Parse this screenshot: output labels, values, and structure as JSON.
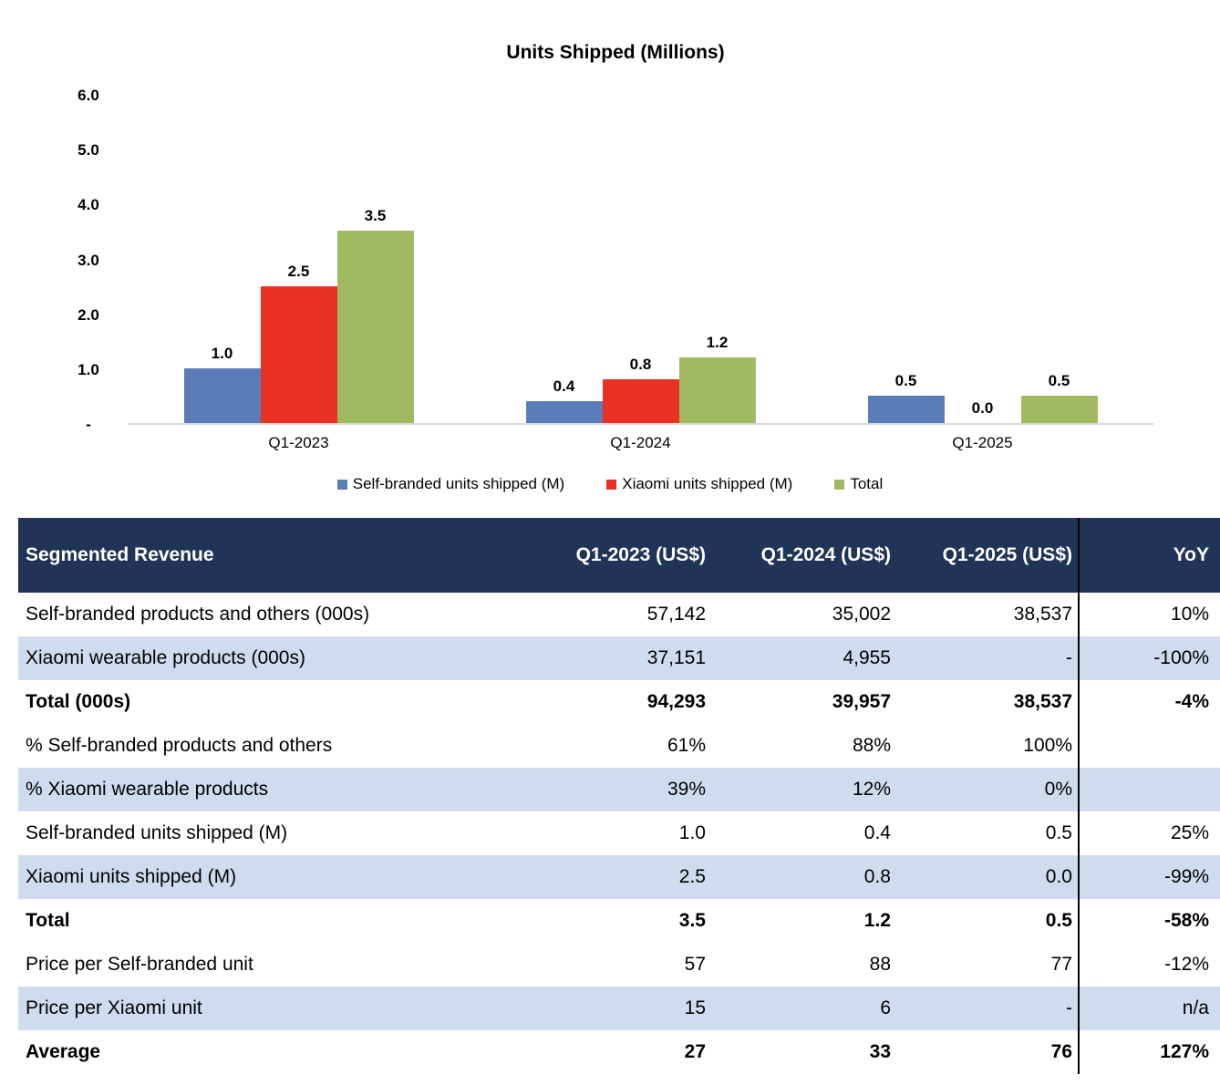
{
  "chart_data": {
    "type": "bar",
    "title": "Units Shipped (Millions)",
    "categories": [
      "Q1-2023",
      "Q1-2024",
      "Q1-2025"
    ],
    "series": [
      {
        "name": "Self-branded units shipped (M)",
        "color": "#5A7DB9",
        "values": [
          1.0,
          0.4,
          0.5
        ]
      },
      {
        "name": "Xiaomi units shipped (M)",
        "color": "#E93223",
        "values": [
          2.5,
          0.8,
          0.0
        ]
      },
      {
        "name": "Total",
        "color": "#A1BA61",
        "values": [
          3.5,
          1.2,
          0.5
        ]
      }
    ],
    "ylim": [
      0,
      6
    ],
    "y_tick_labels": [
      "6.0",
      "5.0",
      "4.0",
      "3.0",
      "2.0",
      "1.0",
      "-"
    ],
    "grid": false,
    "legend_position": "bottom",
    "data_labels": true,
    "axis_line_color": "#D9D9D9"
  },
  "table": {
    "columns": [
      "Segmented Revenue",
      "Q1-2023 (US$)",
      "Q1-2024 (US$)",
      "Q1-2025 (US$)",
      "YoY"
    ],
    "rows": [
      {
        "label": "Self-branded products and others (000s)",
        "values": [
          "57,142",
          "35,002",
          "38,537",
          "10%"
        ],
        "bold": false,
        "shaded": false
      },
      {
        "label": "Xiaomi wearable products (000s)",
        "values": [
          "37,151",
          "4,955",
          "-",
          "-100%"
        ],
        "bold": false,
        "shaded": true
      },
      {
        "label": "Total (000s)",
        "values": [
          "94,293",
          "39,957",
          "38,537",
          "-4%"
        ],
        "bold": true,
        "shaded": false
      },
      {
        "label": "% Self-branded products and others",
        "values": [
          "61%",
          "88%",
          "100%",
          ""
        ],
        "bold": false,
        "shaded": false
      },
      {
        "label": "% Xiaomi wearable products",
        "values": [
          "39%",
          "12%",
          "0%",
          ""
        ],
        "bold": false,
        "shaded": true
      },
      {
        "label": "Self-branded units shipped (M)",
        "values": [
          "1.0",
          "0.4",
          "0.5",
          "25%"
        ],
        "bold": false,
        "shaded": false
      },
      {
        "label": "Xiaomi units shipped (M)",
        "values": [
          "2.5",
          "0.8",
          "0.0",
          "-99%"
        ],
        "bold": false,
        "shaded": true
      },
      {
        "label": "Total",
        "values": [
          "3.5",
          "1.2",
          "0.5",
          "-58%"
        ],
        "bold": true,
        "shaded": false
      },
      {
        "label": "Price per Self-branded unit",
        "values": [
          "57",
          "88",
          "77",
          "-12%"
        ],
        "bold": false,
        "shaded": false
      },
      {
        "label": "Price per Xiaomi unit",
        "values": [
          "15",
          "6",
          "-",
          "n/a"
        ],
        "bold": false,
        "shaded": true
      },
      {
        "label": "Average",
        "values": [
          "27",
          "33",
          "76",
          "127%"
        ],
        "bold": true,
        "shaded": false
      }
    ],
    "colors": {
      "header_bg": "#203457",
      "header_text": "#FFFFFF",
      "stripe_bg": "#CFDBEF",
      "divider": "#000000"
    }
  }
}
